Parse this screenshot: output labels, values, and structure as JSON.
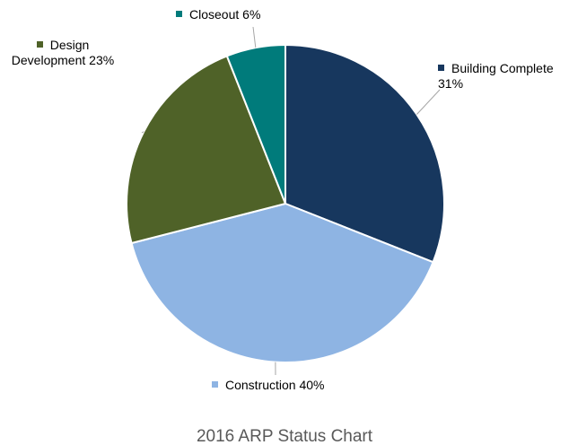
{
  "chart_data": {
    "type": "pie",
    "title": "2016 ARP Status Chart",
    "categories": [
      "Building Complete",
      "Construction",
      "Design Development",
      "Closeout"
    ],
    "values": [
      31,
      40,
      23,
      6
    ],
    "value_labels": [
      "31%",
      "40%",
      "23%",
      "6%"
    ],
    "colors": [
      "#17375e",
      "#8eb4e3",
      "#4f6228",
      "#007b7b"
    ]
  }
}
